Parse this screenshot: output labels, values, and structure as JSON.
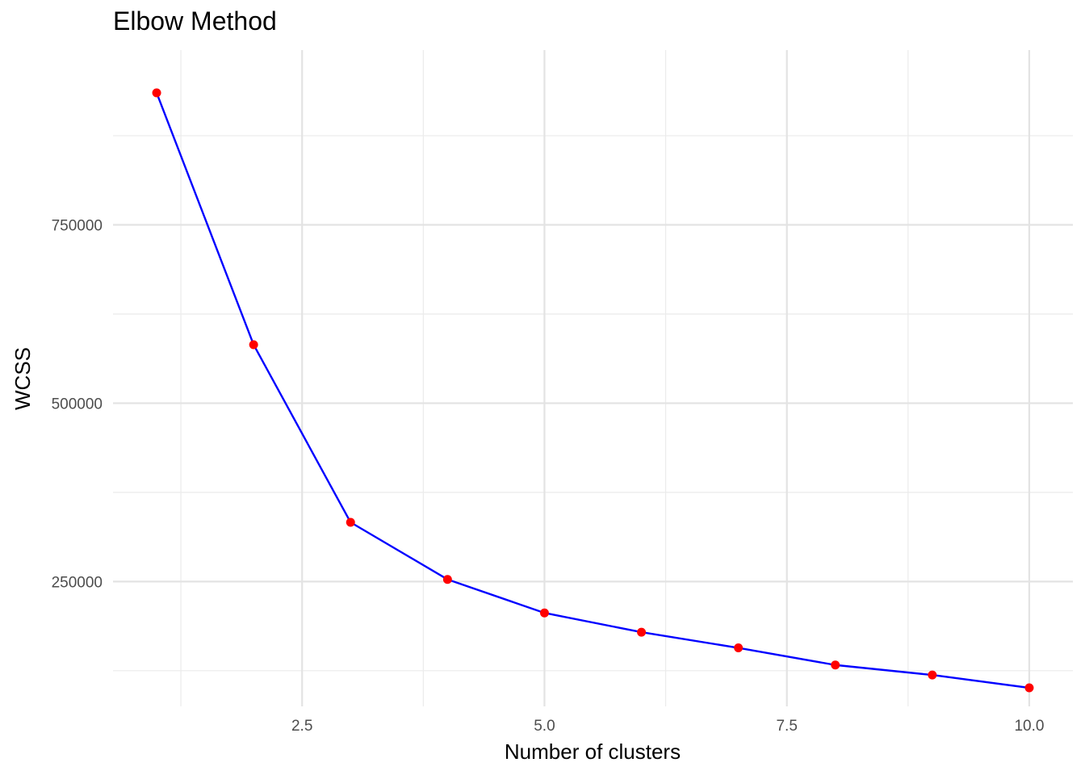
{
  "chart_data": {
    "type": "line",
    "title": "Elbow Method",
    "xlabel": "Number of clusters",
    "ylabel": "WCSS",
    "xlim": [
      0.55,
      10.45
    ],
    "ylim": [
      75000,
      995000
    ],
    "x_ticks": [
      2.5,
      5.0,
      7.5,
      10.0
    ],
    "x_tick_labels": [
      "2.5",
      "5.0",
      "7.5",
      "10.0"
    ],
    "x_minor_ticks": [
      1.25,
      3.75,
      6.25,
      8.75
    ],
    "y_ticks": [
      250000,
      500000,
      750000
    ],
    "y_tick_labels": [
      "250000",
      "500000",
      "750000"
    ],
    "y_minor_ticks": [
      125000,
      375000,
      625000,
      875000
    ],
    "grid": true,
    "series": [
      {
        "x": [
          1,
          2,
          3,
          4,
          5,
          6,
          7,
          8,
          9,
          10
        ],
        "values": [
          935000,
          582000,
          333000,
          253000,
          206000,
          179000,
          157000,
          133000,
          119000,
          101000
        ],
        "line_color": "#0000ff",
        "point_color": "#ff0000"
      }
    ]
  }
}
